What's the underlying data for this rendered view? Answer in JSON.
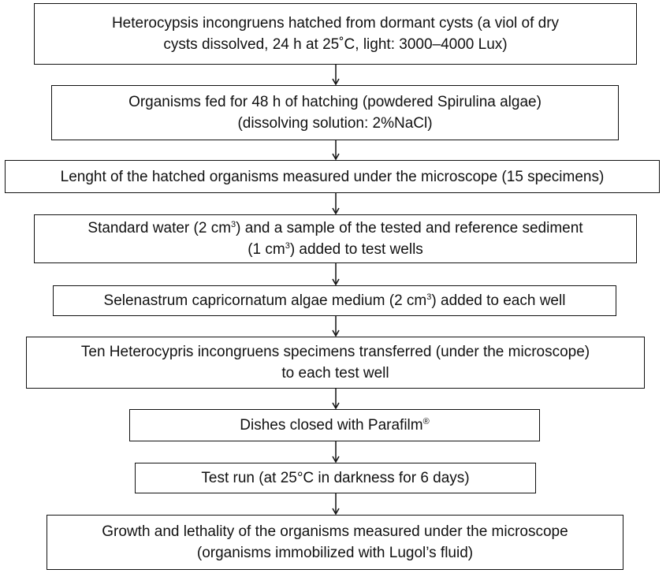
{
  "flow_steps": [
    {
      "id": "hatching",
      "lines": [
        [
          "Heterocypsis incongruens hatched from dormant cysts (a viol of dry"
        ],
        [
          "cysts dissolved, 24 h at 25˚C, light: 3000–4000 Lux)"
        ]
      ]
    },
    {
      "id": "feeding",
      "lines": [
        [
          "Organisms fed for 48 h of hatching (powdered Spirulina algae)"
        ],
        [
          "(dissolving solution: 2%NaCl)"
        ]
      ]
    },
    {
      "id": "length-measurement",
      "lines": [
        [
          "Lenght of the hatched organisms measured under the microscope (15 specimens)"
        ]
      ]
    },
    {
      "id": "standard-water",
      "lines": [
        [
          "Standard water (2 cm",
          "3",
          ") and a sample of the tested and reference sediment"
        ],
        [
          "(1 cm",
          "3",
          ") added to test wells"
        ]
      ]
    },
    {
      "id": "algae-medium",
      "lines": [
        [
          "Selenastrum capricornatum algae medium (2 cm",
          "3",
          ") added to each well"
        ]
      ]
    },
    {
      "id": "transfer",
      "lines": [
        [
          "Ten Heterocypris incongruens specimens transferred (under the microscope)"
        ],
        [
          "to each test well"
        ]
      ]
    },
    {
      "id": "dishes-closed",
      "lines": [
        [
          "Dishes closed with Parafilm",
          "®"
        ]
      ]
    },
    {
      "id": "test-run",
      "lines": [
        [
          "Test run (at 25°C in darkness for 6 days)"
        ]
      ]
    },
    {
      "id": "growth-lethality",
      "lines": [
        [
          "Growth and lethality of the organisms measured under the microscope"
        ],
        [
          "(organisms immobilized with Lugol’s fluid)"
        ]
      ]
    }
  ],
  "colors": {
    "stroke": "#111111",
    "text": "#111111",
    "background": "#ffffff"
  }
}
